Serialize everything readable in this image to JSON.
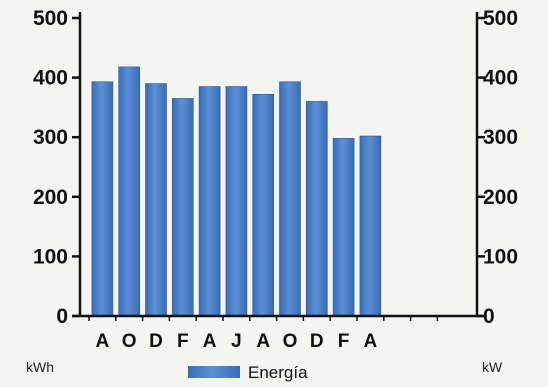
{
  "chart_data": {
    "type": "bar",
    "categories": [
      "A",
      "O",
      "D",
      "F",
      "A",
      "J",
      "A",
      "O",
      "D",
      "F",
      "A",
      "",
      "",
      ""
    ],
    "series": [
      {
        "name": "Energía",
        "values": [
          393,
          418,
          390,
          365,
          385,
          385,
          372,
          393,
          360,
          298,
          302,
          null,
          null,
          null
        ]
      }
    ],
    "title": "",
    "xlabel": "",
    "ylabel": "kWh",
    "y2label": "kW",
    "ylim": [
      0,
      500
    ],
    "y2lim": [
      0,
      500
    ],
    "yticks": [
      0,
      100,
      200,
      300,
      400,
      500
    ],
    "grid": false,
    "legend_position": "bottom",
    "bar_color": "#4a7fc8"
  }
}
